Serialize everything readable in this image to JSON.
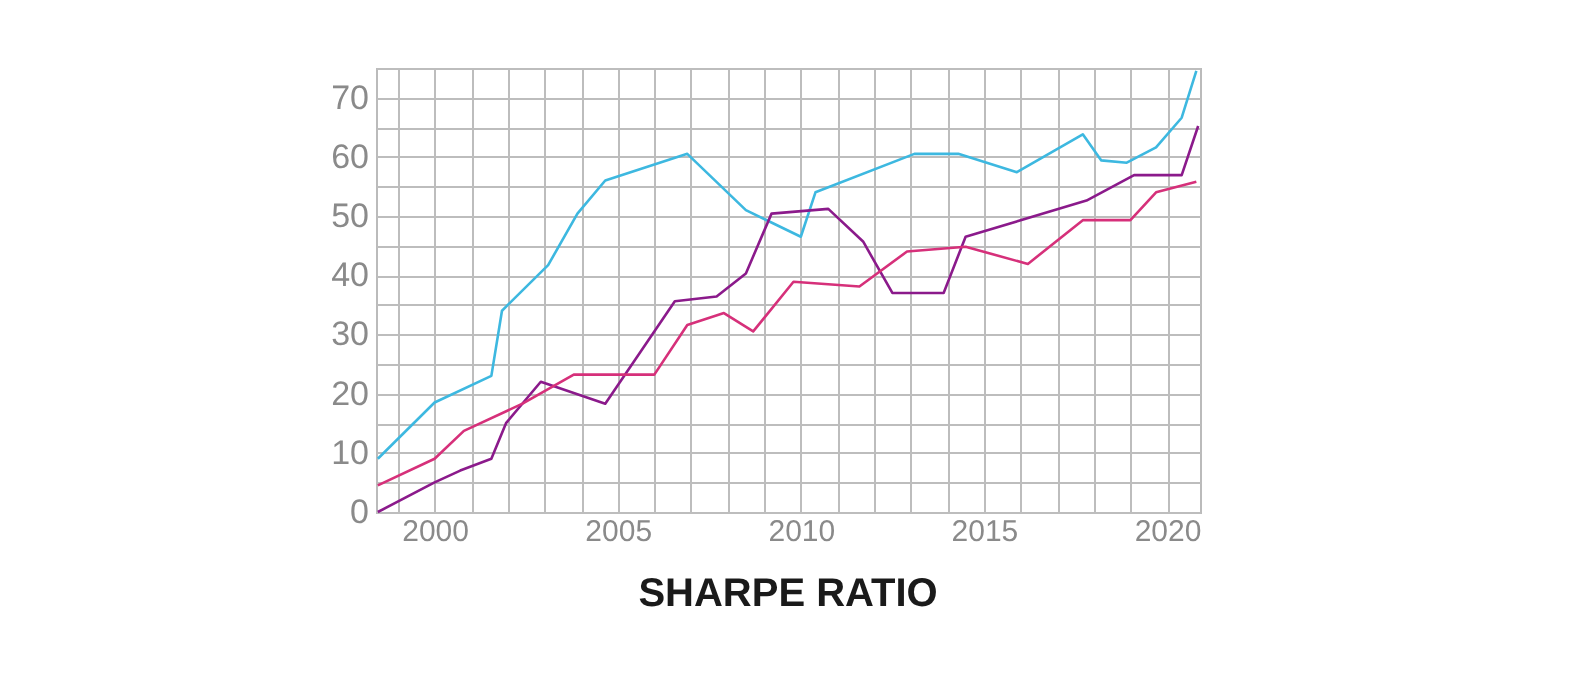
{
  "chart_data": {
    "type": "line",
    "title": "SHARPE RATIO",
    "xlim": [
      1998.4,
      2020.9
    ],
    "ylim": [
      0,
      75
    ],
    "xticks": [
      {
        "value": 1999,
        "label": null
      },
      2000,
      {
        "value": 2001,
        "label": null
      },
      {
        "value": 2002,
        "label": null
      },
      {
        "value": 2003,
        "label": null
      },
      {
        "value": 2004,
        "label": null
      },
      2005,
      {
        "value": 2006,
        "label": null
      },
      {
        "value": 2007,
        "label": null
      },
      {
        "value": 2008,
        "label": null
      },
      {
        "value": 2009,
        "label": null
      },
      2010,
      {
        "value": 2011,
        "label": null
      },
      {
        "value": 2012,
        "label": null
      },
      {
        "value": 2013,
        "label": null
      },
      {
        "value": 2014,
        "label": null
      },
      2015,
      {
        "value": 2016,
        "label": null
      },
      {
        "value": 2017,
        "label": null
      },
      {
        "value": 2018,
        "label": null
      },
      {
        "value": 2019,
        "label": null
      },
      2020
    ],
    "yticks": [
      0,
      {
        "value": 5,
        "label": null
      },
      10,
      {
        "value": 15,
        "label": null
      },
      20,
      {
        "value": 25,
        "label": null
      },
      30,
      {
        "value": 35,
        "label": null
      },
      40,
      {
        "value": 45,
        "label": null
      },
      50,
      {
        "value": 55,
        "label": null
      },
      60,
      {
        "value": 65,
        "label": null
      },
      70,
      {
        "value": 75,
        "label": null
      }
    ],
    "grid": true,
    "legend": false,
    "line_style": "solid",
    "marker": "none",
    "series": [
      {
        "color": "#3db8e0",
        "x": [
          1998.45,
          2000.0,
          2001.55,
          2001.84,
          2003.1,
          2003.9,
          2004.66,
          2006.9,
          2008.5,
          2009.0,
          2010.0,
          2010.4,
          2013.1,
          2014.3,
          2015.9,
          2017.7,
          2018.2,
          2018.9,
          2019.7,
          2020.4,
          2020.8
        ],
        "values": [
          9,
          18.5,
          23,
          34,
          41.7,
          50.4,
          56,
          60.5,
          51,
          49.5,
          46.5,
          54,
          60.5,
          60.5,
          57.4,
          63.8,
          59.4,
          59,
          61.6,
          66.6,
          74.5
        ]
      },
      {
        "color": "#8b1a8b",
        "x": [
          1998.45,
          2000.0,
          2000.7,
          2001.55,
          2001.95,
          2002.9,
          2004.66,
          2006.56,
          2007.7,
          2008.5,
          2009.2,
          2010.75,
          2011.7,
          2012.5,
          2013.9,
          2014.5,
          2017.8,
          2019.1,
          2020.4,
          2020.85
        ],
        "values": [
          0,
          5,
          7,
          9,
          15,
          22,
          18.3,
          35.6,
          36.4,
          40.3,
          50.4,
          51.2,
          45.7,
          37,
          37,
          46.5,
          52.6,
          56.9,
          56.9,
          65.2
        ]
      },
      {
        "color": "#d6307a",
        "x": [
          1998.45,
          2000.0,
          2000.8,
          2002.4,
          2003.8,
          2006.0,
          2006.9,
          2007.9,
          2008.7,
          2009.8,
          2011.6,
          2012.9,
          2014.5,
          2016.2,
          2017.7,
          2019.0,
          2019.7,
          2020.8
        ],
        "values": [
          4.5,
          9,
          13.7,
          18.3,
          23.2,
          23.2,
          31.6,
          33.6,
          30.5,
          38.9,
          38.1,
          44,
          44.8,
          41.9,
          49.3,
          49.3,
          54,
          55.8
        ]
      }
    ]
  }
}
